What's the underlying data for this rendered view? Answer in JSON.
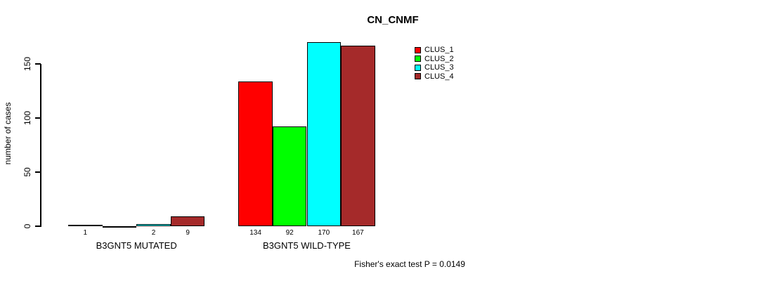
{
  "chart_data": {
    "type": "bar",
    "title": "CN_CNMF",
    "ylabel": "number of cases",
    "xlabel": "",
    "ylim": [
      0,
      150
    ],
    "yticks": [
      0,
      50,
      100,
      150
    ],
    "grid": false,
    "legend_position": "top-right",
    "bar_border_color": "#000000",
    "background_color": "#ffffff",
    "series": [
      {
        "name": "CLUS_1",
        "color": "#ff0000"
      },
      {
        "name": "CLUS_2",
        "color": "#00ff00"
      },
      {
        "name": "CLUS_3",
        "color": "#00ffff"
      },
      {
        "name": "CLUS_4",
        "color": "#a52a2a"
      }
    ],
    "groups": [
      {
        "label": "B3GNT5 MUTATED",
        "values": [
          1,
          0,
          2,
          9
        ],
        "value_labels": [
          "1",
          "",
          "2",
          "9"
        ]
      },
      {
        "label": "B3GNT5 WILD-TYPE",
        "values": [
          134,
          92,
          170,
          167
        ],
        "value_labels": [
          "134",
          "92",
          "170",
          "167"
        ]
      }
    ],
    "footnote": "Fisher's exact test P = 0.0149"
  }
}
